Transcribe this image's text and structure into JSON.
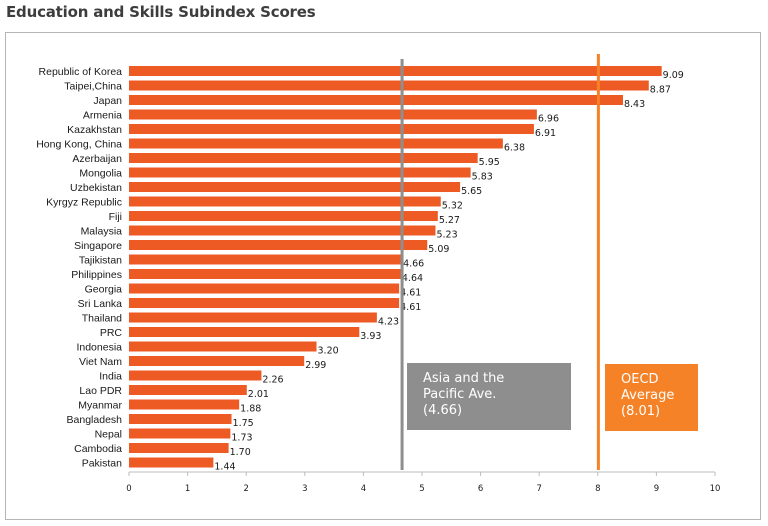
{
  "title": "Education and Skills Subindex Scores",
  "colors": {
    "bar": "#ee5a24",
    "asia": "#8e8e8e",
    "oecd": "#f58226",
    "frame": "#b5b5b5"
  },
  "chart_data": {
    "type": "bar",
    "orientation": "horizontal",
    "title": "Education and Skills Subindex Scores",
    "xlabel": "",
    "ylabel": "",
    "xlim": [
      0,
      10
    ],
    "x_ticks": [
      "0",
      "1",
      "2",
      "3",
      "4",
      "5",
      "6",
      "7",
      "8",
      "9",
      "10"
    ],
    "grid": false,
    "categories": [
      "Republic of Korea",
      "Taipei,China",
      "Japan",
      "Armenia",
      "Kazakhstan",
      "Hong Kong, China",
      "Azerbaijan",
      "Mongolia",
      "Uzbekistan",
      "Kyrgyz Republic",
      "Fiji",
      "Malaysia",
      "Singapore",
      "Tajikistan",
      "Philippines",
      "Georgia",
      "Sri Lanka",
      "Thailand",
      "PRC",
      "Indonesia",
      "Viet Nam",
      "India",
      "Lao PDR",
      "Myanmar",
      "Bangladesh",
      "Nepal",
      "Cambodia",
      "Pakistan"
    ],
    "values": [
      9.09,
      8.87,
      8.43,
      6.96,
      6.91,
      6.38,
      5.95,
      5.83,
      5.65,
      5.32,
      5.27,
      5.23,
      5.09,
      4.66,
      4.64,
      4.61,
      4.61,
      4.23,
      3.93,
      3.2,
      2.99,
      2.26,
      2.01,
      1.88,
      1.75,
      1.73,
      1.7,
      1.44
    ],
    "value_labels": [
      "9.09",
      "8.87",
      "8.43",
      "6.96",
      "6.91",
      "6.38",
      "5.95",
      "5.83",
      "5.65",
      "5.32",
      "5.27",
      "5.23",
      "5.09",
      "4.66",
      "4.64",
      "4.61",
      "4.61",
      "4.23",
      "3.93",
      "3.20",
      "2.99",
      "2.26",
      "2.01",
      "1.88",
      "1.75",
      "1.73",
      "1.70",
      "1.44"
    ],
    "reference_lines": [
      {
        "value": 4.66,
        "label": [
          "Asia and the",
          "Pacific Ave.",
          "(4.66)"
        ],
        "color": "#8e8e8e"
      },
      {
        "value": 8.01,
        "label": [
          "OECD",
          "Average",
          "(8.01)"
        ],
        "color": "#f58226"
      }
    ]
  }
}
